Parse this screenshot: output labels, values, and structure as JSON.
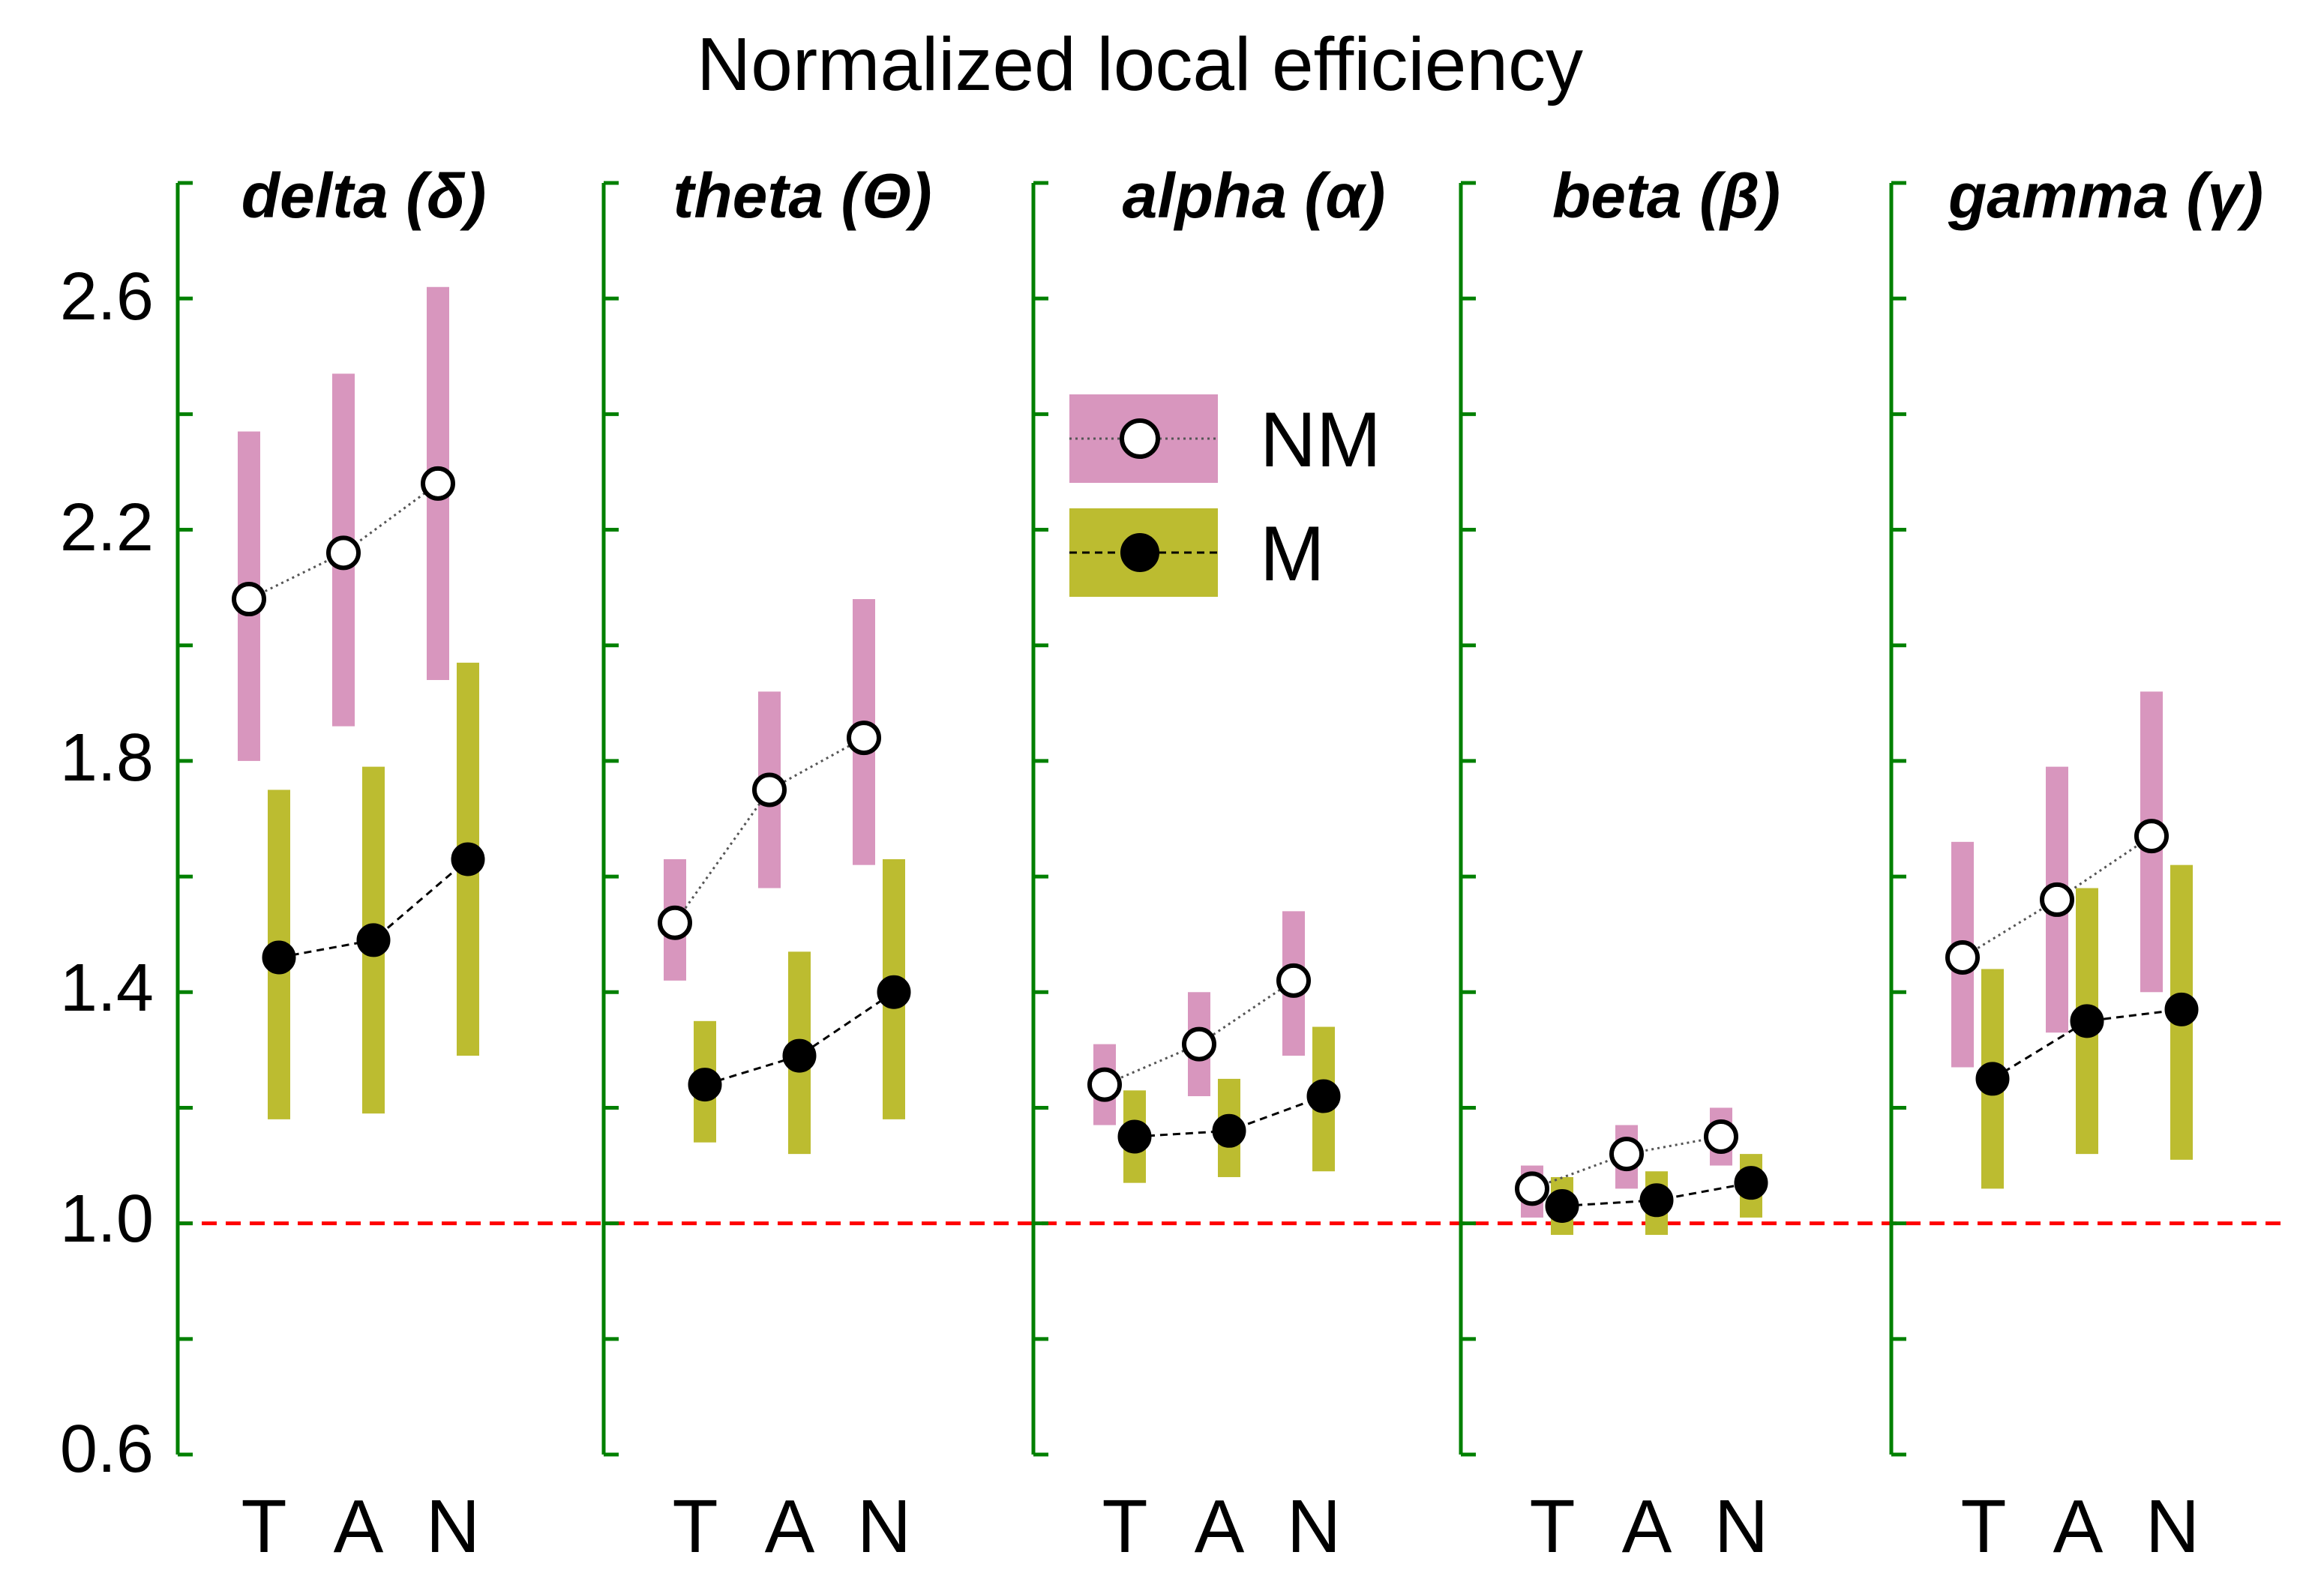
{
  "chart_data": {
    "type": "scatter",
    "title": "Normalized local efficiency",
    "categories": [
      "T",
      "A",
      "N"
    ],
    "ylim": [
      0.6,
      2.8
    ],
    "yticks": [
      "0.6",
      "1.0",
      "1.4",
      "1.8",
      "2.2",
      "2.6"
    ],
    "reference_line": 1.0,
    "legend": {
      "placement": "inside-top",
      "entries": [
        "NM",
        "M"
      ]
    },
    "colors": {
      "axis": "#008000",
      "NM_bar": "#d896be",
      "M_bar": "#bcbc30",
      "reference": "#ff0000",
      "marker_fill_NM": "#ffffff",
      "marker_fill_M": "#000000"
    },
    "panels": [
      {
        "band": "delta (δ)",
        "series": [
          {
            "name": "NM",
            "values": [
              2.08,
              2.16,
              2.28
            ],
            "low": [
              1.8,
              1.86,
              1.94
            ],
            "high": [
              2.37,
              2.47,
              2.62
            ]
          },
          {
            "name": "M",
            "values": [
              1.46,
              1.49,
              1.63
            ],
            "low": [
              1.18,
              1.19,
              1.29
            ],
            "high": [
              1.75,
              1.79,
              1.97
            ]
          }
        ]
      },
      {
        "band": "theta (Θ)",
        "series": [
          {
            "name": "NM",
            "values": [
              1.52,
              1.75,
              1.84
            ],
            "low": [
              1.42,
              1.58,
              1.62
            ],
            "high": [
              1.63,
              1.92,
              2.08
            ]
          },
          {
            "name": "M",
            "values": [
              1.24,
              1.29,
              1.4
            ],
            "low": [
              1.14,
              1.12,
              1.18
            ],
            "high": [
              1.35,
              1.47,
              1.63
            ]
          }
        ]
      },
      {
        "band": "alpha (α)",
        "series": [
          {
            "name": "NM",
            "values": [
              1.24,
              1.31,
              1.42
            ],
            "low": [
              1.17,
              1.22,
              1.29
            ],
            "high": [
              1.31,
              1.4,
              1.54
            ]
          },
          {
            "name": "M",
            "values": [
              1.15,
              1.16,
              1.22
            ],
            "low": [
              1.07,
              1.08,
              1.09
            ],
            "high": [
              1.23,
              1.25,
              1.34
            ]
          }
        ]
      },
      {
        "band": "beta (β)",
        "series": [
          {
            "name": "NM",
            "values": [
              1.06,
              1.12,
              1.15
            ],
            "low": [
              1.01,
              1.06,
              1.1
            ],
            "high": [
              1.1,
              1.17,
              1.2
            ]
          },
          {
            "name": "M",
            "values": [
              1.03,
              1.04,
              1.07
            ],
            "low": [
              0.98,
              0.98,
              1.01
            ],
            "high": [
              1.08,
              1.09,
              1.12
            ]
          }
        ]
      },
      {
        "band": "gamma (γ)",
        "series": [
          {
            "name": "NM",
            "values": [
              1.46,
              1.56,
              1.67
            ],
            "low": [
              1.27,
              1.33,
              1.4
            ],
            "high": [
              1.66,
              1.79,
              1.92
            ]
          },
          {
            "name": "M",
            "values": [
              1.25,
              1.35,
              1.37
            ],
            "low": [
              1.06,
              1.12,
              1.11
            ],
            "high": [
              1.44,
              1.58,
              1.62
            ]
          }
        ]
      }
    ]
  }
}
